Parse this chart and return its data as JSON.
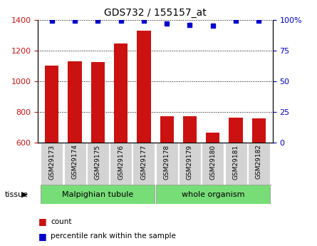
{
  "title": "GDS732 / 155157_at",
  "samples": [
    "GSM29173",
    "GSM29174",
    "GSM29175",
    "GSM29176",
    "GSM29177",
    "GSM29178",
    "GSM29179",
    "GSM29180",
    "GSM29181",
    "GSM29182"
  ],
  "counts": [
    1100,
    1130,
    1125,
    1245,
    1330,
    770,
    770,
    665,
    765,
    758
  ],
  "percentiles": [
    99,
    99,
    99,
    99,
    99,
    97,
    96,
    95,
    99,
    99
  ],
  "bar_color": "#cc1111",
  "percentile_color": "#0000cc",
  "ylim_left": [
    600,
    1400
  ],
  "ylim_right": [
    0,
    100
  ],
  "yticks_left": [
    600,
    800,
    1000,
    1200,
    1400
  ],
  "yticks_right": [
    0,
    25,
    50,
    75,
    100
  ],
  "label_color_left": "#cc1111",
  "label_color_right": "#0000cc",
  "legend_count_label": "count",
  "legend_percentile_label": "percentile rank within the sample",
  "tick_label_bg": "#d3d3d3",
  "green_color": "#77dd77",
  "tissue_groups": [
    {
      "label": "Malpighian tubule",
      "start": 0,
      "end": 4
    },
    {
      "label": "whole organism",
      "start": 5,
      "end": 9
    }
  ]
}
